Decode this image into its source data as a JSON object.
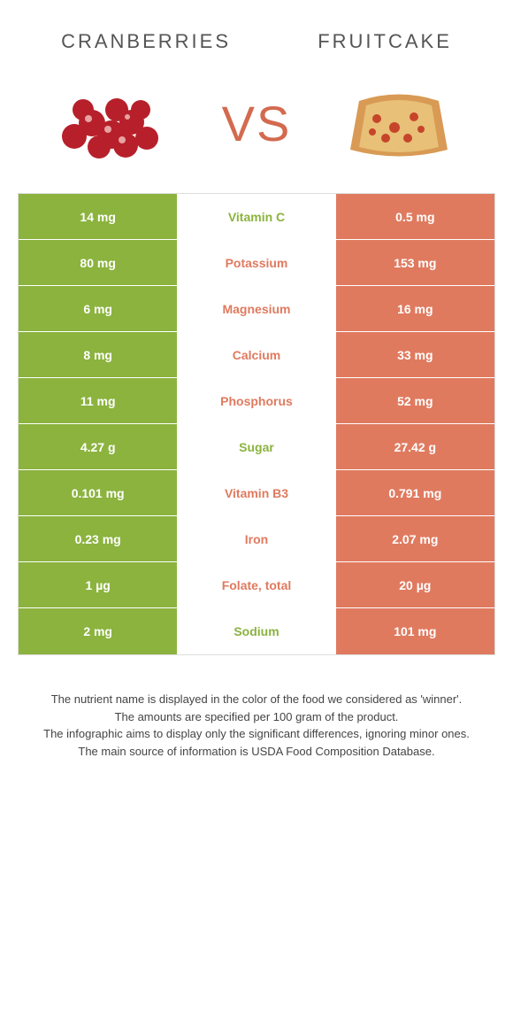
{
  "header": {
    "left": "CRANBERRIES",
    "right": "FRUITCAKE"
  },
  "versus": "VS",
  "colors": {
    "left": "#8bb33e",
    "right": "#e07a5f",
    "vs_text": "#d36a4f"
  },
  "rows": [
    {
      "left": "14 mg",
      "label": "Vitamin C",
      "right": "0.5 mg",
      "winner": "left"
    },
    {
      "left": "80 mg",
      "label": "Potassium",
      "right": "153 mg",
      "winner": "right"
    },
    {
      "left": "6 mg",
      "label": "Magnesium",
      "right": "16 mg",
      "winner": "right"
    },
    {
      "left": "8 mg",
      "label": "Calcium",
      "right": "33 mg",
      "winner": "right"
    },
    {
      "left": "11 mg",
      "label": "Phosphorus",
      "right": "52 mg",
      "winner": "right"
    },
    {
      "left": "4.27 g",
      "label": "Sugar",
      "right": "27.42 g",
      "winner": "left"
    },
    {
      "left": "0.101 mg",
      "label": "Vitamin B3",
      "right": "0.791 mg",
      "winner": "right"
    },
    {
      "left": "0.23 mg",
      "label": "Iron",
      "right": "2.07 mg",
      "winner": "right"
    },
    {
      "left": "1 µg",
      "label": "Folate, total",
      "right": "20 µg",
      "winner": "right"
    },
    {
      "left": "2 mg",
      "label": "Sodium",
      "right": "101 mg",
      "winner": "left"
    }
  ],
  "footer": {
    "line1": "The nutrient name is displayed in the color of the food we considered as 'winner'.",
    "line2": "The amounts are specified per 100 gram of the product.",
    "line3": "The infographic aims to display only the significant differences, ignoring minor ones.",
    "line4": "The main source of information is USDA Food Composition Database."
  }
}
